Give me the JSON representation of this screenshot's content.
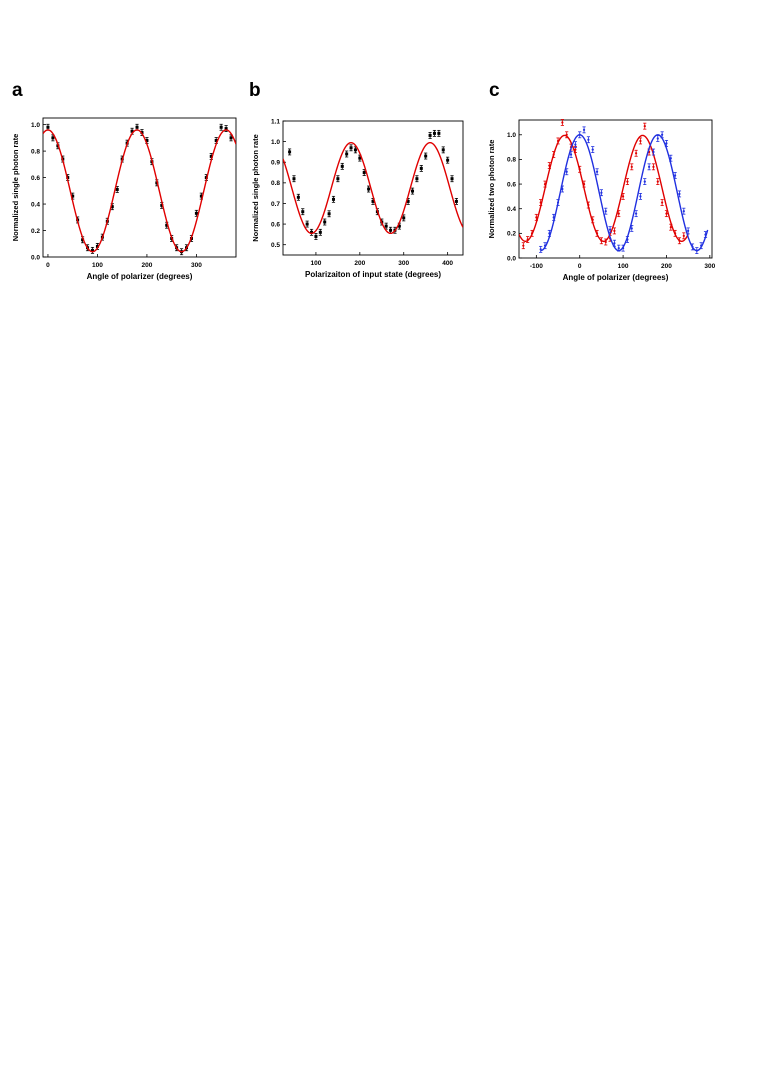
{
  "figure": {
    "panels": [
      "a",
      "b",
      "c"
    ]
  },
  "chart_data": [
    {
      "type": "scatter",
      "panel": "a",
      "xlabel": "Angle of polarizer (degrees)",
      "ylabel": "Normalized single photon rate",
      "xlim": [
        -10,
        380
      ],
      "ylim": [
        0,
        1.05
      ],
      "xticks": [
        "0",
        "100",
        "200",
        "300"
      ],
      "yticks": [
        "0.0",
        "0.2",
        "0.4",
        "0.6",
        "0.8",
        "1.0"
      ],
      "series": [
        {
          "color": "#000000",
          "marker": "square-errorbar",
          "x": [
            0,
            10,
            20,
            30,
            40,
            50,
            60,
            70,
            80,
            90,
            100,
            110,
            120,
            130,
            140,
            150,
            160,
            170,
            180,
            190,
            200,
            210,
            220,
            230,
            240,
            250,
            260,
            270,
            280,
            290,
            300,
            310,
            320,
            330,
            340,
            350,
            360,
            370
          ],
          "y": [
            0.98,
            0.9,
            0.84,
            0.74,
            0.6,
            0.46,
            0.28,
            0.13,
            0.07,
            0.05,
            0.08,
            0.15,
            0.27,
            0.38,
            0.51,
            0.74,
            0.86,
            0.95,
            0.98,
            0.94,
            0.88,
            0.72,
            0.56,
            0.39,
            0.24,
            0.14,
            0.07,
            0.04,
            0.07,
            0.14,
            0.33,
            0.46,
            0.6,
            0.76,
            0.88,
            0.98,
            0.97,
            0.9
          ]
        },
        {
          "color": "#e00000",
          "fit": "cosine",
          "mean": 0.5,
          "amplitude": 0.46,
          "period": 180,
          "phase": 0
        }
      ]
    },
    {
      "type": "scatter",
      "panel": "b",
      "xlabel": "Polarizaiton of input state (degrees)",
      "ylabel": "Normalized single photon rate",
      "xlim": [
        25,
        435
      ],
      "ylim": [
        0.45,
        1.1
      ],
      "xticks": [
        "100",
        "200",
        "300",
        "400"
      ],
      "yticks": [
        "0.5",
        "0.6",
        "0.7",
        "0.8",
        "0.9",
        "1.0",
        "1.1"
      ],
      "series": [
        {
          "color": "#000000",
          "marker": "square-errorbar",
          "x": [
            40,
            50,
            60,
            70,
            80,
            90,
            100,
            110,
            120,
            130,
            140,
            150,
            160,
            170,
            180,
            190,
            200,
            210,
            220,
            230,
            240,
            250,
            260,
            270,
            280,
            290,
            300,
            310,
            320,
            330,
            340,
            350,
            360,
            370,
            380,
            390,
            400,
            410,
            420
          ],
          "y": [
            0.95,
            0.82,
            0.73,
            0.66,
            0.6,
            0.56,
            0.54,
            0.56,
            0.61,
            0.65,
            0.72,
            0.82,
            0.88,
            0.94,
            0.97,
            0.96,
            0.92,
            0.85,
            0.77,
            0.71,
            0.66,
            0.61,
            0.59,
            0.57,
            0.57,
            0.59,
            0.63,
            0.71,
            0.76,
            0.82,
            0.87,
            0.93,
            1.03,
            1.04,
            1.04,
            0.96,
            0.91,
            0.82,
            0.71
          ]
        },
        {
          "color": "#e00000",
          "fit": "cosine",
          "mean": 0.775,
          "amplitude": 0.22,
          "period": 180,
          "phase": 0
        }
      ]
    },
    {
      "type": "scatter",
      "panel": "c",
      "xlabel": "Angle of polarizer (degrees)",
      "ylabel": "Normalized two photon rate",
      "xlim": [
        -140,
        305
      ],
      "ylim": [
        0,
        1.12
      ],
      "xticks": [
        "-100",
        "0",
        "100",
        "200",
        "300"
      ],
      "yticks": [
        "0.0",
        "0.2",
        "0.4",
        "0.6",
        "0.8",
        "1.0"
      ],
      "series": [
        {
          "color": "#e00000",
          "marker": "errorbar",
          "x": [
            -130,
            -120,
            -110,
            -100,
            -90,
            -80,
            -70,
            -60,
            -50,
            -40,
            -30,
            -20,
            -10,
            0,
            10,
            20,
            30,
            40,
            50,
            60,
            70,
            80,
            90,
            100,
            110,
            120,
            130,
            140,
            150,
            160,
            170,
            180,
            190,
            200,
            210,
            220,
            230,
            240
          ],
          "y": [
            0.1,
            0.15,
            0.2,
            0.33,
            0.45,
            0.6,
            0.75,
            0.84,
            0.95,
            1.1,
            1.0,
            0.9,
            0.88,
            0.72,
            0.6,
            0.43,
            0.31,
            0.2,
            0.14,
            0.13,
            0.16,
            0.22,
            0.36,
            0.5,
            0.62,
            0.74,
            0.85,
            0.95,
            1.07,
            0.86,
            0.74,
            0.62,
            0.45,
            0.36,
            0.25,
            0.2,
            0.14,
            0.18
          ]
        },
        {
          "color": "#e00000",
          "fit": "cosine",
          "mean": 0.565,
          "amplitude": 0.43,
          "period": 180,
          "phase": -35,
          "range": [
            -140,
            250
          ]
        },
        {
          "color": "#2030e0",
          "marker": "errorbar",
          "x": [
            -90,
            -80,
            -70,
            -60,
            -50,
            -40,
            -30,
            -20,
            -10,
            0,
            10,
            20,
            30,
            40,
            50,
            60,
            70,
            80,
            90,
            100,
            110,
            120,
            130,
            140,
            150,
            160,
            170,
            180,
            190,
            200,
            210,
            220,
            230,
            240,
            250,
            260,
            270,
            280,
            290
          ],
          "y": [
            0.07,
            0.1,
            0.2,
            0.33,
            0.45,
            0.56,
            0.7,
            0.84,
            0.92,
            1.0,
            1.04,
            0.96,
            0.88,
            0.7,
            0.53,
            0.38,
            0.23,
            0.12,
            0.08,
            0.08,
            0.15,
            0.24,
            0.36,
            0.5,
            0.62,
            0.74,
            0.86,
            0.97,
            1.0,
            0.93,
            0.81,
            0.67,
            0.52,
            0.38,
            0.22,
            0.09,
            0.06,
            0.1,
            0.19
          ]
        },
        {
          "color": "#2030e0",
          "fit": "cosine",
          "mean": 0.53,
          "amplitude": 0.47,
          "period": 180,
          "phase": 0,
          "range": [
            -90,
            295
          ]
        }
      ]
    }
  ]
}
